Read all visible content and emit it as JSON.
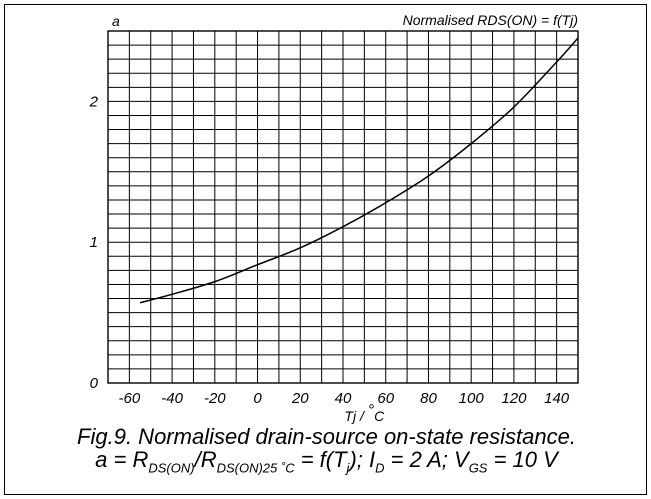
{
  "chart_data": {
    "type": "line",
    "title": "Normalised RDS(ON) = f(Tj)",
    "ylabel": "a",
    "xlabel_parts": {
      "base": "Tj / ",
      "deg": "°",
      "unit": "C"
    },
    "xlim": [
      -70,
      150
    ],
    "ylim": [
      0,
      2.5
    ],
    "x_ticks": [
      -60,
      -40,
      -20,
      0,
      20,
      40,
      60,
      80,
      100,
      120,
      140
    ],
    "y_ticks": [
      0,
      1,
      2
    ],
    "x_grid_step": 10,
    "y_grid_step": 0.1,
    "series": [
      {
        "x": [
          -55,
          -40,
          -20,
          0,
          20,
          40,
          60,
          80,
          100,
          120,
          140,
          150
        ],
        "y": [
          0.57,
          0.63,
          0.72,
          0.84,
          0.96,
          1.11,
          1.28,
          1.47,
          1.7,
          1.96,
          2.28,
          2.45
        ]
      }
    ]
  },
  "caption": {
    "line1": "Fig.9.  Normalised drain-source on-state resistance.",
    "line2": {
      "a_eq": "a = R",
      "sub1": "DS(ON)",
      "slash": "/R",
      "sub2": "DS(ON)25 ˚C",
      "eq": " = f(T",
      "sub3": "j",
      "id": "); I",
      "sub4": "D",
      "id_val": " = 2 A; V",
      "sub5": "GS",
      "vgs_val": " = 10 V"
    }
  }
}
